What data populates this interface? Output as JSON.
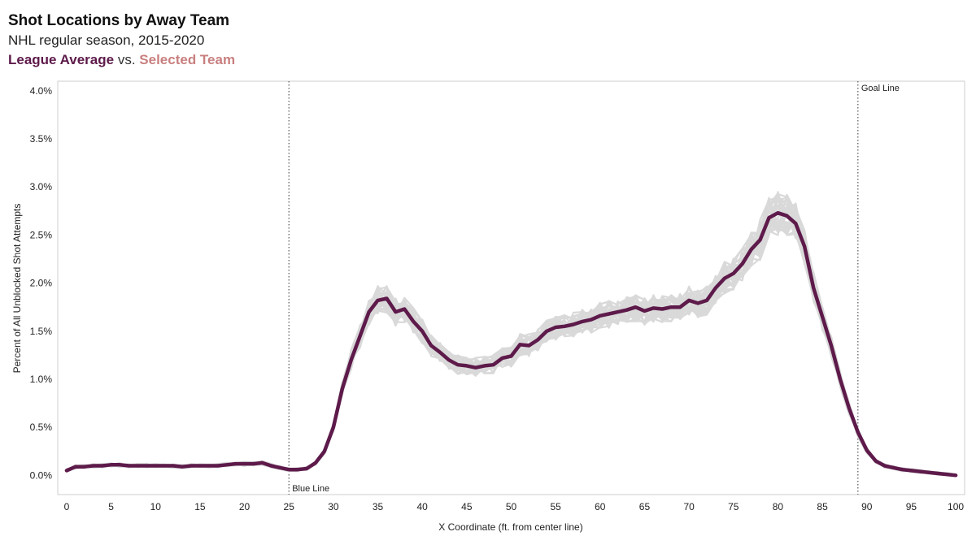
{
  "header": {
    "title": "Shot Locations by Away Team",
    "subtitle": "NHL regular season, 2015-2020",
    "legend_avg": "League Average",
    "legend_vs": "vs.",
    "legend_sel": "Selected Team"
  },
  "colors": {
    "league_average": "#5d1a4a",
    "selected_team": "#c97f7f",
    "teams": "#d9d9d9",
    "frame": "#cfcfcf"
  },
  "chart_data": {
    "type": "line",
    "xlabel": "X Coordinate (ft. from center line)",
    "ylabel": "Percent of All Unblocked Shot Attempts",
    "xlim": [
      -1,
      101
    ],
    "ylim": [
      -0.2,
      4.1
    ],
    "x_ticks": [
      0,
      5,
      10,
      15,
      20,
      25,
      30,
      35,
      40,
      45,
      50,
      55,
      60,
      65,
      70,
      75,
      80,
      85,
      90,
      95,
      100
    ],
    "y_ticks": [
      0.0,
      0.5,
      1.0,
      1.5,
      2.0,
      2.5,
      3.0,
      3.5,
      4.0
    ],
    "y_tick_labels": [
      "0.0%",
      "0.5%",
      "1.0%",
      "1.5%",
      "2.0%",
      "2.5%",
      "3.0%",
      "3.5%",
      "4.0%"
    ],
    "reference_lines": [
      {
        "x": 25,
        "label": "Blue Line",
        "label_position": "bottom"
      },
      {
        "x": 89,
        "label": "Goal Line",
        "label_position": "top"
      }
    ],
    "series": [
      {
        "name": "League Average",
        "x": [
          0,
          1,
          2,
          3,
          4,
          5,
          6,
          7,
          8,
          9,
          10,
          11,
          12,
          13,
          14,
          15,
          16,
          17,
          18,
          19,
          20,
          21,
          22,
          23,
          24,
          25,
          26,
          27,
          28,
          29,
          30,
          31,
          32,
          33,
          34,
          35,
          36,
          37,
          38,
          39,
          40,
          41,
          42,
          43,
          44,
          45,
          46,
          47,
          48,
          49,
          50,
          51,
          52,
          53,
          54,
          55,
          56,
          57,
          58,
          59,
          60,
          61,
          62,
          63,
          64,
          65,
          66,
          67,
          68,
          69,
          70,
          71,
          72,
          73,
          74,
          75,
          76,
          77,
          78,
          79,
          80,
          81,
          82,
          83,
          84,
          85,
          86,
          87,
          88,
          89,
          90,
          91,
          92,
          93,
          94,
          95,
          96,
          97,
          98,
          99,
          100
        ],
        "values": [
          0.05,
          0.09,
          0.09,
          0.1,
          0.1,
          0.11,
          0.11,
          0.1,
          0.1,
          0.1,
          0.1,
          0.1,
          0.1,
          0.09,
          0.1,
          0.1,
          0.1,
          0.1,
          0.11,
          0.12,
          0.12,
          0.12,
          0.13,
          0.1,
          0.08,
          0.06,
          0.06,
          0.07,
          0.13,
          0.25,
          0.5,
          0.9,
          1.2,
          1.45,
          1.7,
          1.82,
          1.84,
          1.7,
          1.73,
          1.6,
          1.5,
          1.35,
          1.28,
          1.2,
          1.15,
          1.14,
          1.12,
          1.14,
          1.15,
          1.22,
          1.24,
          1.36,
          1.35,
          1.41,
          1.5,
          1.54,
          1.55,
          1.57,
          1.6,
          1.62,
          1.66,
          1.68,
          1.7,
          1.72,
          1.75,
          1.71,
          1.74,
          1.73,
          1.75,
          1.75,
          1.82,
          1.79,
          1.82,
          1.95,
          2.05,
          2.1,
          2.2,
          2.35,
          2.45,
          2.68,
          2.73,
          2.7,
          2.62,
          2.38,
          1.95,
          1.65,
          1.35,
          1.0,
          0.7,
          0.45,
          0.26,
          0.15,
          0.1,
          0.08,
          0.06,
          0.05,
          0.04,
          0.03,
          0.02,
          0.01,
          0.0
        ]
      }
    ]
  }
}
